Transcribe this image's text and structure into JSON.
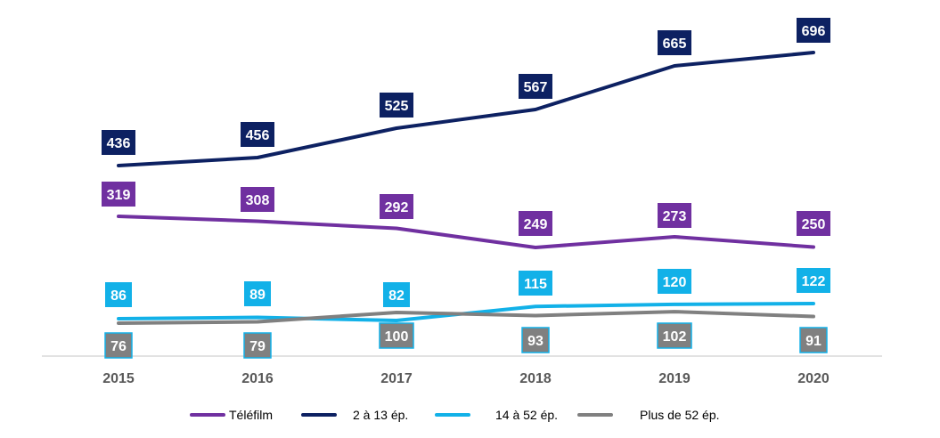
{
  "chart_data": {
    "type": "line",
    "categories": [
      "2015",
      "2016",
      "2017",
      "2018",
      "2019",
      "2020"
    ],
    "series": [
      {
        "name": "Téléfilm",
        "color": "#7030a0",
        "values": [
          319,
          308,
          292,
          249,
          273,
          250
        ]
      },
      {
        "name": "2 à 13 ép.",
        "color": "#0d2162",
        "values": [
          436,
          456,
          525,
          567,
          665,
          696
        ]
      },
      {
        "name": "14 à 52 ép.",
        "color": "#12b1e8",
        "values": [
          86,
          89,
          82,
          115,
          120,
          122
        ]
      },
      {
        "name": "Plus de 52 ép.",
        "color": "#808080",
        "values": [
          76,
          79,
          100,
          93,
          102,
          91
        ]
      }
    ],
    "ylim": [
      0,
      720
    ],
    "grid": false,
    "legend_position": "bottom"
  }
}
